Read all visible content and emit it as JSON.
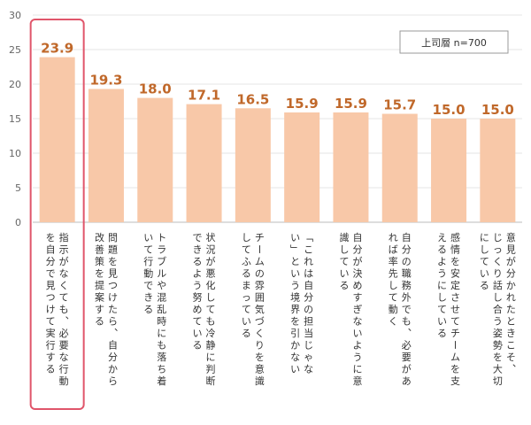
{
  "chart_data": {
    "type": "bar",
    "legend": "上司層 n=700",
    "legend_position": "top-right",
    "ylim": [
      0,
      30
    ],
    "yticks": [
      0,
      5,
      10,
      15,
      20,
      25,
      30
    ],
    "grid": true,
    "bar_color": "#f8c8a8",
    "label_color": "#c0682a",
    "highlight_color": "#e0556a",
    "highlight_index": 0,
    "categories": [
      "指示がなくても、必要な行動を自分で見つけて実行する",
      "問題を見つけたら、自分から改善策を提案する",
      "トラブルや混乱時にも落ち着いて行動できる",
      "状況が悪化しても冷静に判断できるよう努めている",
      "チームの雰囲気づくりを意識してふるまっている",
      "「これは自分の担当じゃない」という境界を引かない",
      "自分が決めすぎないように意識している",
      "自分の職務外でも、必要があれば率先して動く",
      "感情を安定させてチームを支えるようにしている",
      "意見が分かれたときこそ、じっくり話し合う姿勢を大切にしている"
    ],
    "category_lines": [
      [
        "指示がなくても、必要な行動",
        "を自分で見つけて実行する"
      ],
      [
        "問題を見つけたら、自分から",
        "改善策を提案する"
      ],
      [
        "トラブルや混乱時にも落ち着",
        "いて行動できる"
      ],
      [
        "状況が悪化しても冷静に判断",
        "できるよう努めている"
      ],
      [
        "チームの雰囲気づくりを意識",
        "してふるまっている"
      ],
      [
        "「これは自分の担当じゃな",
        "い」という境界を引かない"
      ],
      [
        "自分が決めすぎないように意",
        "識している"
      ],
      [
        "自分の職務外でも、必要があ",
        "れば率先して動く"
      ],
      [
        "感情を安定させてチームを支",
        "えるようにしている"
      ],
      [
        "意見が分かれたときこそ、",
        "じっくり話し合う姿勢を大切",
        "にしている"
      ]
    ],
    "values": [
      23.9,
      19.3,
      18.0,
      17.1,
      16.5,
      15.9,
      15.9,
      15.7,
      15.0,
      15.0
    ],
    "value_labels": [
      "23.9",
      "19.3",
      "18.0",
      "17.1",
      "16.5",
      "15.9",
      "15.9",
      "15.7",
      "15.0",
      "15.0"
    ]
  }
}
